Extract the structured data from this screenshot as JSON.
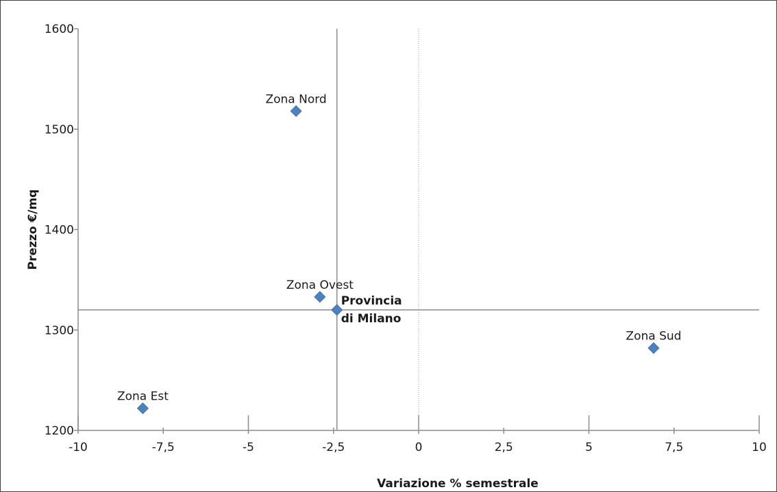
{
  "chart_data": {
    "type": "scatter",
    "title": "",
    "xlabel": "Variazione % semestrale",
    "ylabel": "Prezzo €/mq",
    "xlim": [
      -10,
      10
    ],
    "ylim": [
      1200,
      1600
    ],
    "x_ticks": [
      "-10",
      "-7,5",
      "-5",
      "-2,5",
      "0",
      "2,5",
      "5",
      "7,5",
      "10"
    ],
    "x_tick_values": [
      -10,
      -7.5,
      -5,
      -2.5,
      0,
      2.5,
      5,
      7.5,
      10
    ],
    "y_ticks": [
      "1200",
      "1300",
      "1400",
      "1500",
      "1600"
    ],
    "y_tick_values": [
      1200,
      1300,
      1400,
      1500,
      1600
    ],
    "grid": false,
    "legend": "none",
    "marker_color": "#4f81bd",
    "points": [
      {
        "label": "Zona Nord",
        "x": -3.6,
        "y": 1518,
        "bold": false
      },
      {
        "label": "Zona Ovest",
        "x": -2.9,
        "y": 1333,
        "bold": false
      },
      {
        "label": "Provincia di Milano",
        "label_lines": [
          "Provincia",
          "di Milano"
        ],
        "x": -2.4,
        "y": 1320,
        "bold": true
      },
      {
        "label": "Zona Sud",
        "x": 6.9,
        "y": 1282,
        "bold": false
      },
      {
        "label": "Zona Est",
        "x": -8.1,
        "y": 1222,
        "bold": false
      }
    ],
    "reference_lines": {
      "x": -2.4,
      "y": 1320
    }
  }
}
